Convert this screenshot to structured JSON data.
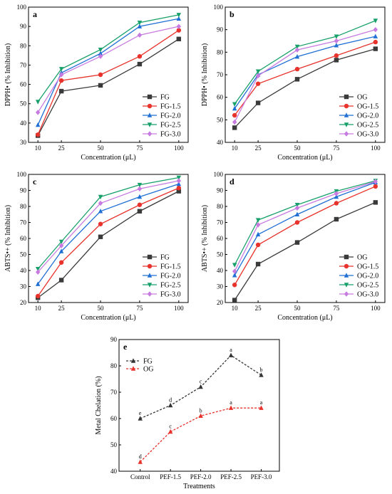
{
  "colors": {
    "FG": "#3a3a3a",
    "15": "#e8322c",
    "20": "#1f6fd4",
    "25": "#17a06a",
    "30": "#c77be0",
    "pefFG": "#333333",
    "pefOG": "#e8322c"
  },
  "chart_data": [
    {
      "type": "line",
      "panel": "a",
      "xlabel": "Concentration (μL)",
      "ylabel": "DPPH• (% Inhibition)",
      "ylim": [
        30,
        100
      ],
      "yticks": [
        30,
        40,
        50,
        60,
        70,
        80,
        90,
        100
      ],
      "x": [
        10,
        25,
        50,
        75,
        100
      ],
      "legend": "bottom-right",
      "series": [
        {
          "name": "FG",
          "colorKey": "FG",
          "marker": "square",
          "values": [
            33.5,
            56.5,
            59.5,
            70.5,
            83.5
          ]
        },
        {
          "name": "FG-1.5",
          "colorKey": "15",
          "marker": "circle",
          "values": [
            34,
            62,
            65,
            74.5,
            88
          ]
        },
        {
          "name": "FG-2.0",
          "colorKey": "20",
          "marker": "triangle",
          "values": [
            39,
            66,
            76,
            90,
            94
          ]
        },
        {
          "name": "FG-2.5",
          "colorKey": "25",
          "marker": "tridown",
          "values": [
            51,
            68,
            78,
            92,
            96
          ]
        },
        {
          "name": "FG-3.0",
          "colorKey": "30",
          "marker": "diamond",
          "values": [
            45.5,
            65,
            74.5,
            85.5,
            90
          ]
        }
      ]
    },
    {
      "type": "line",
      "panel": "b",
      "xlabel": "Concentration (μL)",
      "ylabel": "DPPH• (% Inhibition)",
      "ylim": [
        40,
        100
      ],
      "yticks": [
        40,
        50,
        60,
        70,
        80,
        90,
        100
      ],
      "x": [
        10,
        25,
        50,
        75,
        100
      ],
      "legend": "bottom-right",
      "series": [
        {
          "name": "OG",
          "colorKey": "FG",
          "marker": "square",
          "values": [
            46.5,
            57.5,
            68,
            76.5,
            81.5
          ]
        },
        {
          "name": "OG-1.5",
          "colorKey": "15",
          "marker": "circle",
          "values": [
            52,
            66,
            72.5,
            78.5,
            84.5
          ]
        },
        {
          "name": "OG-2.0",
          "colorKey": "20",
          "marker": "triangle",
          "values": [
            55,
            70,
            78,
            83,
            87
          ]
        },
        {
          "name": "OG-2.5",
          "colorKey": "25",
          "marker": "tridown",
          "values": [
            57,
            71.5,
            82.5,
            87,
            94
          ]
        },
        {
          "name": "OG-3.0",
          "colorKey": "30",
          "marker": "diamond",
          "values": [
            49,
            69.5,
            81,
            85,
            90
          ]
        }
      ]
    },
    {
      "type": "line",
      "panel": "c",
      "xlabel": "Concentration (μL)",
      "ylabel": "ABTS•+ (% Inhibition)",
      "ylim": [
        20,
        100
      ],
      "yticks": [
        20,
        30,
        40,
        50,
        60,
        70,
        80,
        90,
        100
      ],
      "x": [
        10,
        25,
        50,
        75,
        100
      ],
      "legend": "bottom-right",
      "series": [
        {
          "name": "FG",
          "colorKey": "FG",
          "marker": "square",
          "values": [
            23,
            34,
            61,
            77,
            89.5
          ]
        },
        {
          "name": "FG-1.5",
          "colorKey": "15",
          "marker": "circle",
          "values": [
            24,
            45,
            69,
            81,
            91.5
          ]
        },
        {
          "name": "FG-2.0",
          "colorKey": "20",
          "marker": "triangle",
          "values": [
            31.5,
            52,
            77,
            86,
            94
          ]
        },
        {
          "name": "FG-2.5",
          "colorKey": "25",
          "marker": "tridown",
          "values": [
            41,
            58,
            86,
            93.5,
            98
          ]
        },
        {
          "name": "FG-3.0",
          "colorKey": "30",
          "marker": "diamond",
          "values": [
            39,
            55.5,
            82,
            91,
            96
          ]
        }
      ]
    },
    {
      "type": "line",
      "panel": "d",
      "xlabel": "Concentration (μL)",
      "ylabel": "ABTS•+ (% Inhibition)",
      "ylim": [
        20,
        100
      ],
      "yticks": [
        20,
        30,
        40,
        50,
        60,
        70,
        80,
        90,
        100
      ],
      "x": [
        10,
        25,
        50,
        75,
        100
      ],
      "legend": "bottom-right",
      "series": [
        {
          "name": "OG",
          "colorKey": "FG",
          "marker": "square",
          "values": [
            21.5,
            44,
            57.5,
            72,
            82.5
          ]
        },
        {
          "name": "OG-1.5",
          "colorKey": "15",
          "marker": "circle",
          "values": [
            31,
            56,
            70,
            82,
            92.5
          ]
        },
        {
          "name": "OG-2.0",
          "colorKey": "20",
          "marker": "triangle",
          "values": [
            37,
            62.5,
            75,
            86,
            95
          ]
        },
        {
          "name": "OG-2.5",
          "colorKey": "25",
          "marker": "tridown",
          "values": [
            43.5,
            71.5,
            81,
            89.5,
            96
          ]
        },
        {
          "name": "OG-3.0",
          "colorKey": "30",
          "marker": "diamond",
          "values": [
            39.5,
            68.5,
            79,
            88,
            95.5
          ]
        }
      ]
    },
    {
      "type": "line",
      "panel": "e",
      "xlabel": "Treatments",
      "ylabel": "Metal Chelation (%)",
      "ylim": [
        40,
        90
      ],
      "yticks": [
        40,
        50,
        60,
        70,
        80,
        90
      ],
      "categories": [
        "Control",
        "PEF-1.5",
        "PEF-2.0",
        "PEF-2.5",
        "PEF-3.0"
      ],
      "legend": "top-left",
      "series": [
        {
          "name": "FG",
          "colorKey": "pefFG",
          "marker": "triangle",
          "values": [
            60,
            65,
            72,
            84,
            76.5
          ],
          "labels": [
            "e",
            "d",
            "c",
            "a",
            "b"
          ]
        },
        {
          "name": "OG",
          "colorKey": "pefOG",
          "marker": "triangle",
          "values": [
            43.5,
            55,
            61,
            64,
            64
          ],
          "labels": [
            "d",
            "c",
            "b",
            "a",
            "a"
          ]
        }
      ]
    }
  ]
}
